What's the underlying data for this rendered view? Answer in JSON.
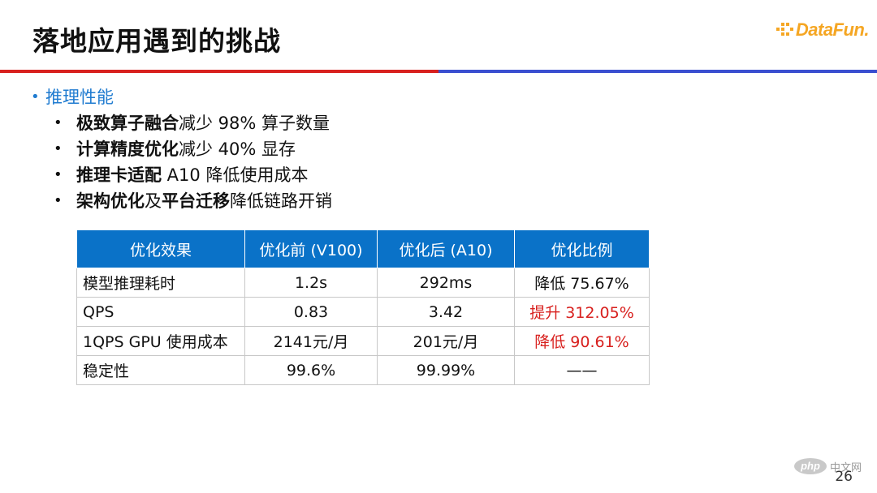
{
  "slide": {
    "title": "落地应用遇到的挑战",
    "brand": "DataFun.",
    "page_number": "26",
    "watermark": {
      "badge": "php",
      "text": "中文网"
    }
  },
  "bullets": {
    "heading": "推理性能",
    "items": [
      {
        "bold": "极致算子融合",
        "rest": "减少 98% 算子数量"
      },
      {
        "bold": "计算精度优化",
        "rest": "减少 40% 显存"
      },
      {
        "bold": "推理卡适配",
        "rest": " A10 降低使用成本"
      },
      {
        "bold": "架构优化",
        "mid": "及",
        "bold2": "平台迁移",
        "rest": "降低链路开销"
      }
    ]
  },
  "table": {
    "headers": [
      "优化效果",
      "优化前 (V100)",
      "优化后 (A10)",
      "优化比例"
    ],
    "rows": [
      [
        "模型推理耗时",
        "1.2s",
        "292ms",
        "降低 75.67%"
      ],
      [
        "QPS",
        "0.83",
        "3.42",
        "提升 312.05%"
      ],
      [
        "1QPS GPU 使用成本",
        "2141元/月",
        "201元/月",
        "降低 90.61%"
      ],
      [
        "稳定性",
        "99.6%",
        "99.99%",
        "——"
      ]
    ]
  },
  "colors": {
    "accent_red": "#d8201e",
    "accent_blue": "#3a4ed0",
    "header_blue": "#0a72c8",
    "bullet_blue": "#1f7bd0"
  }
}
